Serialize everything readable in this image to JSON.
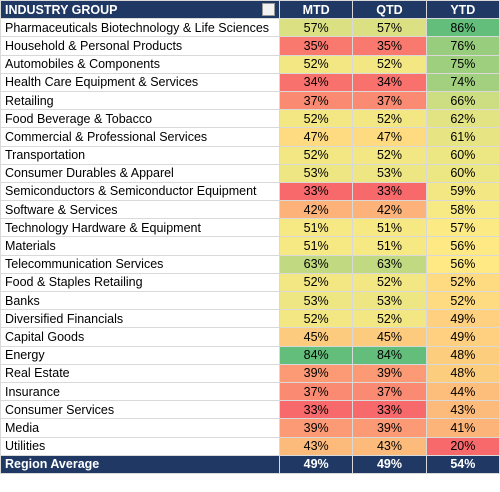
{
  "table": {
    "header": [
      "INDUSTRY GROUP",
      "MTD",
      "QTD",
      "YTD"
    ],
    "rows": [
      [
        "Pharmaceuticals Biotechnology & Life Sciences",
        "57%",
        "57%",
        "86%"
      ],
      [
        "Household & Personal Products",
        "35%",
        "35%",
        "76%"
      ],
      [
        "Automobiles & Components",
        "52%",
        "52%",
        "75%"
      ],
      [
        "Health Care Equipment & Services",
        "34%",
        "34%",
        "74%"
      ],
      [
        "Retailing",
        "37%",
        "37%",
        "66%"
      ],
      [
        "Food Beverage & Tobacco",
        "52%",
        "52%",
        "62%"
      ],
      [
        "Commercial & Professional Services",
        "47%",
        "47%",
        "61%"
      ],
      [
        "Transportation",
        "52%",
        "52%",
        "60%"
      ],
      [
        "Consumer Durables & Apparel",
        "53%",
        "53%",
        "60%"
      ],
      [
        "Semiconductors & Semiconductor Equipment",
        "33%",
        "33%",
        "59%"
      ],
      [
        "Software & Services",
        "42%",
        "42%",
        "58%"
      ],
      [
        "Technology Hardware & Equipment",
        "51%",
        "51%",
        "57%"
      ],
      [
        "Materials",
        "51%",
        "51%",
        "56%"
      ],
      [
        "Telecommunication Services",
        "63%",
        "63%",
        "56%"
      ],
      [
        "Food & Staples Retailing",
        "52%",
        "52%",
        "52%"
      ],
      [
        "Banks",
        "53%",
        "53%",
        "52%"
      ],
      [
        "Diversified Financials",
        "52%",
        "52%",
        "49%"
      ],
      [
        "Capital Goods",
        "45%",
        "45%",
        "49%"
      ],
      [
        "Energy",
        "84%",
        "84%",
        "48%"
      ],
      [
        "Real Estate",
        "39%",
        "39%",
        "48%"
      ],
      [
        "Insurance",
        "37%",
        "37%",
        "44%"
      ],
      [
        "Consumer Services",
        "33%",
        "33%",
        "43%"
      ],
      [
        "Media",
        "39%",
        "39%",
        "41%"
      ],
      [
        "Utilities",
        "43%",
        "43%",
        "20%"
      ]
    ],
    "footer": [
      "Region Average",
      "49%",
      "49%",
      "54%"
    ]
  }
}
